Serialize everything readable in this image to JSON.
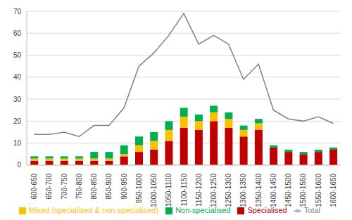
{
  "chart_data": {
    "type": "bar",
    "stacked": true,
    "grid": true,
    "legend": "bottom",
    "categories": [
      "600-650",
      "650-700",
      "700-750",
      "750-800",
      "800-850",
      "850-900",
      "900-950",
      "950-1000",
      "1000-1050",
      "1050-1100",
      "1100-1150",
      "1150-1200",
      "1200-1250",
      "1250-1300",
      "1300-1350",
      "1350-1400",
      "1400-1450",
      "1450-1500",
      "1500-1550",
      "1550-1600",
      "1600-1650"
    ],
    "ylim": [
      0,
      70
    ],
    "yticks": [
      0,
      10,
      20,
      30,
      40,
      50,
      60,
      70
    ],
    "series": [
      {
        "name": "Specialised",
        "type": "bar",
        "color": "#c00000",
        "values": [
          2,
          2,
          2,
          2,
          2,
          2,
          4,
          6,
          7,
          11,
          17,
          16,
          20,
          17,
          13,
          16,
          8,
          6,
          5,
          6,
          7
        ]
      },
      {
        "name": "Mixed (specialised & non-specialised)",
        "type": "bar",
        "color": "#ffc000",
        "values": [
          1,
          1,
          1,
          1,
          1,
          1,
          1,
          3,
          4,
          5,
          5,
          4,
          4,
          4,
          3,
          3,
          0,
          0,
          0,
          0,
          0
        ]
      },
      {
        "name": "Non-specialised",
        "type": "bar",
        "color": "#00b050",
        "values": [
          1,
          1,
          1,
          1,
          3,
          3,
          4,
          4,
          4,
          4,
          4,
          3,
          3,
          3,
          2,
          2,
          1,
          1,
          1,
          1,
          1
        ]
      },
      {
        "name": "Total",
        "type": "line",
        "color": "#808080",
        "values": [
          14,
          14,
          15,
          13,
          18,
          18,
          26,
          45,
          51,
          59,
          69,
          55,
          59,
          55,
          39,
          46,
          25,
          21,
          20,
          22,
          19
        ]
      }
    ]
  }
}
